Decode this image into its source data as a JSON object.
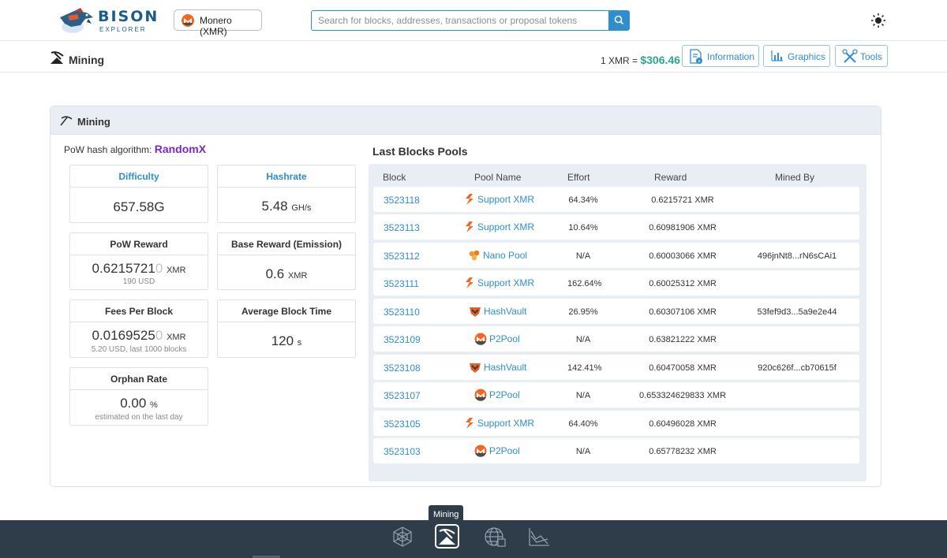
{
  "header": {
    "logo_title": "BISON",
    "logo_subtitle": "EXPLORER",
    "coin_label": "Monero (XMR)",
    "search_placeholder": "Search for blocks, addresses, transactions or proposal tokens"
  },
  "subheader": {
    "page_title": "Mining",
    "price_label": "1 XMR =",
    "price_value": "$306.46",
    "nav": [
      "Information",
      "Graphics",
      "Tools"
    ]
  },
  "card": {
    "title": "Mining",
    "algo_label": "PoW hash algorithm:",
    "algo_value": "RandomX",
    "stats": {
      "difficulty": {
        "label": "Difficulty",
        "value": "657.58G"
      },
      "hashrate": {
        "label": "Hashrate",
        "value": "5.48",
        "unit": "GH/s"
      },
      "pow_reward": {
        "label": "PoW Reward",
        "value": "0.62157210",
        "value_main": "0.6215721",
        "value_dim": "0",
        "unit": "XMR",
        "note": "190 USD"
      },
      "base_reward": {
        "label": "Base Reward (Emission)",
        "value": "0.6",
        "unit": "XMR"
      },
      "fees_per_block": {
        "label": "Fees Per Block",
        "value": "0.01695250",
        "value_main": "0.0169525",
        "value_dim": "0",
        "unit": "XMR",
        "note": "5.20 USD, last 1000 blocks"
      },
      "avg_block_time": {
        "label": "Average Block Time",
        "value": "120",
        "unit": "s"
      },
      "orphan_rate": {
        "label": "Orphan Rate",
        "value": "0.00",
        "unit": "%",
        "note": "estimated on the last day"
      }
    }
  },
  "pools": {
    "title": "Last Blocks Pools",
    "columns": [
      "Block",
      "Pool Name",
      "Effort",
      "Reward",
      "Mined By"
    ],
    "rows": [
      {
        "block": "3523118",
        "pool": "Support XMR",
        "icon": "supportxmr-icon",
        "effort": "64.34%",
        "reward": "0.6215721 XMR",
        "mined_by": ""
      },
      {
        "block": "3523113",
        "pool": "Support XMR",
        "icon": "supportxmr-icon",
        "effort": "10.64%",
        "reward": "0.60981906 XMR",
        "mined_by": ""
      },
      {
        "block": "3523112",
        "pool": "Nano Pool",
        "icon": "nanopool-icon",
        "effort": "N/A",
        "reward": "0.60003066 XMR",
        "mined_by": "496jnNt8...rN6sCAi1"
      },
      {
        "block": "3523111",
        "pool": "Support XMR",
        "icon": "supportxmr-icon",
        "effort": "162.64%",
        "reward": "0.60025312 XMR",
        "mined_by": ""
      },
      {
        "block": "3523110",
        "pool": "HashVault",
        "icon": "hashvault-icon",
        "effort": "26.95%",
        "reward": "0.60307106 XMR",
        "mined_by": "53fef9d3...5a9e2e44"
      },
      {
        "block": "3523109",
        "pool": "P2Pool",
        "icon": "p2pool-icon",
        "effort": "N/A",
        "reward": "0.63821222 XMR",
        "mined_by": ""
      },
      {
        "block": "3523108",
        "pool": "HashVault",
        "icon": "hashvault-icon",
        "effort": "142.41%",
        "reward": "0.60470058 XMR",
        "mined_by": "920c626f...cb70615f"
      },
      {
        "block": "3523107",
        "pool": "P2Pool",
        "icon": "p2pool-icon",
        "effort": "N/A",
        "reward": "0.653324629833 XMR",
        "mined_by": ""
      },
      {
        "block": "3523105",
        "pool": "Support XMR",
        "icon": "supportxmr-icon",
        "effort": "64.40%",
        "reward": "0.60496028 XMR",
        "mined_by": ""
      },
      {
        "block": "3523103",
        "pool": "P2Pool",
        "icon": "p2pool-icon",
        "effort": "N/A",
        "reward": "0.65778232 XMR",
        "mined_by": ""
      }
    ]
  },
  "bottom_nav": {
    "tooltip": "Mining",
    "items": [
      "network-icon",
      "mining-icon",
      "globe-icon",
      "chart-icon"
    ],
    "active": "mining-icon"
  },
  "colors": {
    "accent": "#2f8ecf",
    "price": "#2aa690",
    "algo": "#7a27c9",
    "bottom_bar": "#2f3d4a",
    "panel": "#e9eef4"
  }
}
